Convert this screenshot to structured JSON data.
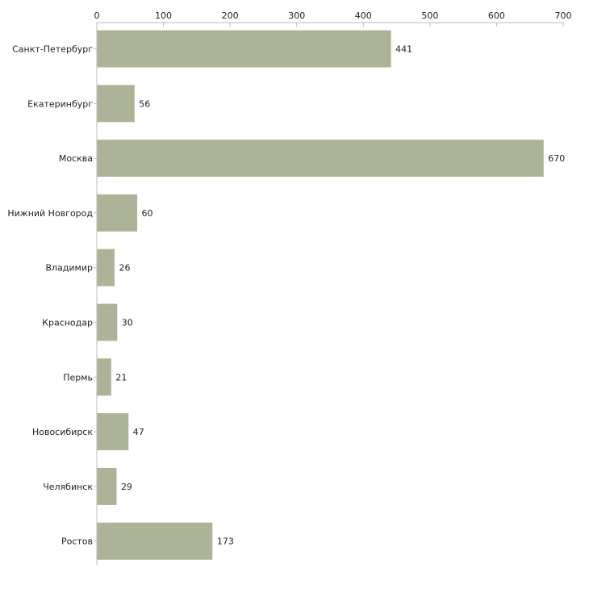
{
  "chart_data": {
    "type": "bar",
    "orientation": "horizontal",
    "title": "",
    "xlabel": "",
    "ylabel": "",
    "categories": [
      "Санкт-Петербург",
      "Екатеринбург",
      "Москва",
      "Нижний Новгород",
      "Владимир",
      "Краснодар",
      "Пермь",
      "Новосибирск",
      "Челябинск",
      "Ростов"
    ],
    "values": [
      441,
      56,
      670,
      60,
      26,
      30,
      21,
      47,
      29,
      173
    ],
    "xlim": [
      0,
      700
    ],
    "xticks": [
      0,
      100,
      200,
      300,
      400,
      500,
      600,
      700
    ],
    "axis_position": "top",
    "grid": false,
    "legend": "none",
    "bar_color": "#adb396",
    "axis_color": "#bbbbbb",
    "text_color": "#222222"
  }
}
